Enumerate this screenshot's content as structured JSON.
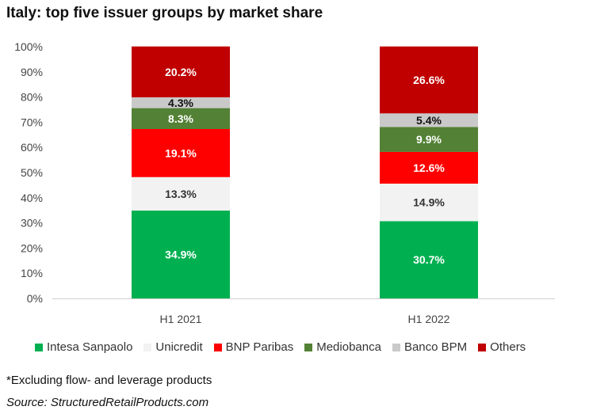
{
  "chart_data": {
    "type": "bar",
    "stacked": true,
    "title": "Italy: top five issuer groups by market share",
    "categories": [
      "H1 2021",
      "H1 2022"
    ],
    "y_ticks": [
      "0%",
      "10%",
      "20%",
      "30%",
      "40%",
      "50%",
      "60%",
      "70%",
      "80%",
      "90%",
      "100%"
    ],
    "ylim": [
      0,
      100
    ],
    "grid": false,
    "legend_position": "bottom",
    "series": [
      {
        "name": "Intesa Sanpaolo",
        "color": "#00b050",
        "label_color": "#ffffff",
        "values": [
          34.9,
          30.7
        ],
        "labels": [
          "34.9%",
          "30.7%"
        ]
      },
      {
        "name": "Unicredit",
        "color": "#f2f2f2",
        "label_color": "#333333",
        "values": [
          13.3,
          14.9
        ],
        "labels": [
          "13.3%",
          "14.9%"
        ]
      },
      {
        "name": "BNP Paribas",
        "color": "#ff0000",
        "label_color": "#ffffff",
        "values": [
          19.1,
          12.6
        ],
        "labels": [
          "19.1%",
          "12.6%"
        ]
      },
      {
        "name": "Mediobanca",
        "color": "#538135",
        "label_color": "#ffffff",
        "values": [
          8.3,
          9.9
        ],
        "labels": [
          "8.3%",
          "9.9%"
        ]
      },
      {
        "name": "Banco BPM",
        "color": "#c9c9c9",
        "label_color": "#111111",
        "values": [
          4.3,
          5.4
        ],
        "labels": [
          "4.3%",
          "5.4%"
        ]
      },
      {
        "name": "Others",
        "color": "#c00000",
        "label_color": "#ffffff",
        "values": [
          20.2,
          26.6
        ],
        "labels": [
          "20.2%",
          "26.6%"
        ]
      }
    ],
    "footnote": "*Excluding flow- and leverage products",
    "source": "Source: StructuredRetailProducts.com"
  }
}
